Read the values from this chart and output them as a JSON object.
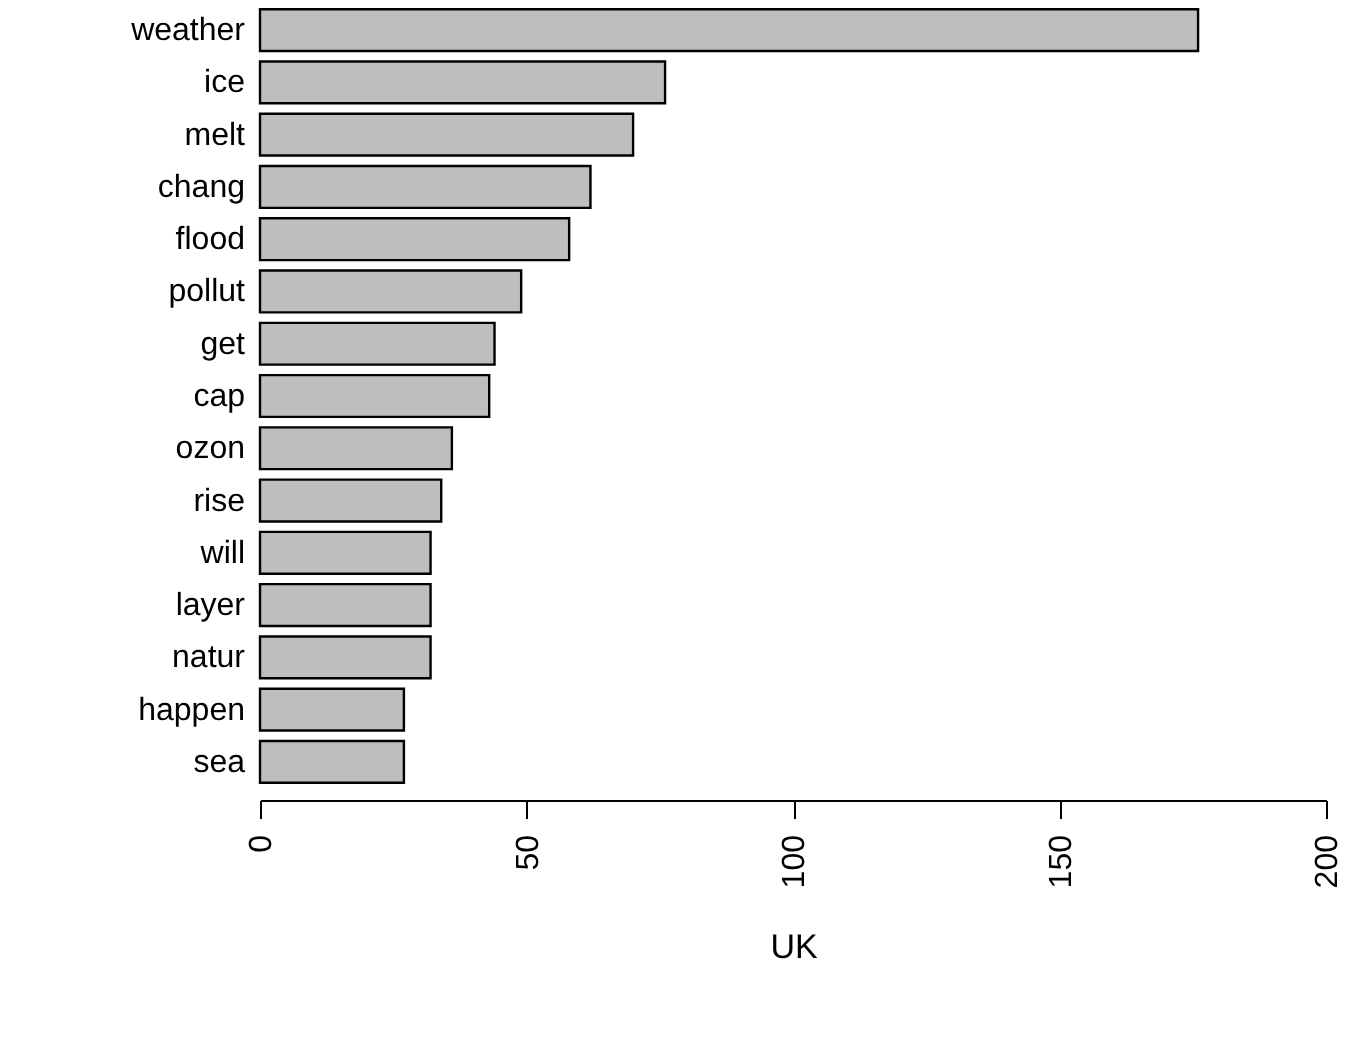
{
  "chart_data": {
    "type": "bar",
    "orientation": "horizontal",
    "xlabel": "UK",
    "categories": [
      "weather",
      "ice",
      "melt",
      "chang",
      "flood",
      "pollut",
      "get",
      "cap",
      "ozon",
      "rise",
      "will",
      "layer",
      "natur",
      "happen",
      "sea"
    ],
    "values": [
      176,
      76,
      70,
      62,
      58,
      49,
      44,
      43,
      36,
      34,
      32,
      32,
      32,
      27,
      27
    ],
    "color": "#bebebe",
    "xlim": [
      0,
      200
    ],
    "xticks": [
      0,
      50,
      100,
      150,
      200
    ]
  }
}
